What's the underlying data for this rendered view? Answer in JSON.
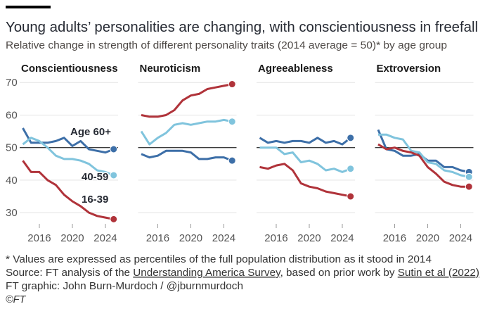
{
  "chart_data": {
    "type": "line",
    "title": "Young adults’ personalities are changing, with conscientiousness in freefall",
    "subtitle": "Relative change in strength of different personality traits (2014 average = 50)* by age group",
    "x": [
      2014,
      2015,
      2016,
      2017,
      2018,
      2019,
      2020,
      2021,
      2022,
      2023,
      2024,
      2025
    ],
    "xlim": [
      2013.5,
      2025.5
    ],
    "xticks": [
      2016,
      2020,
      2024
    ],
    "ylim": [
      27,
      72
    ],
    "yticks": [
      30,
      40,
      50,
      60,
      70
    ],
    "reference_line": 50,
    "grid": true,
    "series": [
      {
        "name": "Age 60+",
        "color": "#3d6fa8"
      },
      {
        "name": "40-59",
        "color": "#80c4dd"
      },
      {
        "name": "16-39",
        "color": "#b0333a"
      }
    ],
    "panels": [
      {
        "title": "Conscientiousness",
        "values": [
          [
            56,
            51.5,
            51.5,
            51.5,
            52,
            53,
            50.5,
            52,
            49.5,
            49,
            48.5,
            49.5
          ],
          [
            51,
            53,
            52,
            50,
            47.5,
            46.5,
            46.5,
            46,
            45,
            43,
            42.5,
            41.5
          ],
          [
            46,
            42.5,
            42.5,
            40,
            38.5,
            35.5,
            33.5,
            32,
            30,
            29,
            28.5,
            28
          ]
        ]
      },
      {
        "title": "Neuroticism",
        "values": [
          [
            48,
            47,
            47.5,
            49,
            49,
            49,
            48.5,
            46.5,
            46.5,
            47,
            47,
            46
          ],
          [
            55,
            51,
            53,
            54.5,
            57,
            57.5,
            57,
            57.5,
            58,
            58,
            58.5,
            58
          ],
          [
            60,
            59.5,
            59.5,
            60,
            61.5,
            64.5,
            66,
            66.5,
            68,
            68.5,
            69,
            69.5
          ]
        ]
      },
      {
        "title": "Agreeableness",
        "values": [
          [
            53,
            51.5,
            52,
            51.5,
            52,
            52,
            51.5,
            53,
            51.5,
            52,
            51,
            53
          ],
          [
            50,
            50,
            50,
            48,
            48.5,
            45.5,
            46,
            45,
            43,
            43.5,
            42.5,
            43.5
          ],
          [
            44,
            43.5,
            44.5,
            45,
            43,
            39,
            38,
            37.5,
            36.5,
            36,
            35.5,
            35
          ]
        ]
      },
      {
        "title": "Extroversion",
        "values": [
          [
            55.5,
            49.5,
            49,
            47.5,
            47.5,
            48,
            46,
            46,
            44,
            44,
            43,
            42.5
          ],
          [
            54,
            54,
            53,
            52.5,
            49,
            48.5,
            45.5,
            45,
            43,
            42.5,
            41.5,
            41
          ],
          [
            51,
            49.5,
            50,
            49,
            48.5,
            47.5,
            44,
            42,
            39.5,
            38.5,
            38,
            38
          ]
        ]
      }
    ],
    "footnote": "* Values are expressed as percentiles of the full population distribution as it stood in 2014",
    "source_parts": [
      "Source: FT analysis of the ",
      "Understanding America Survey",
      ", based on prior work by ",
      "Sutin et al (2022)"
    ],
    "credit": "FT graphic: John Burn-Murdoch / @jburnmurdoch",
    "copyright": "©FT"
  }
}
